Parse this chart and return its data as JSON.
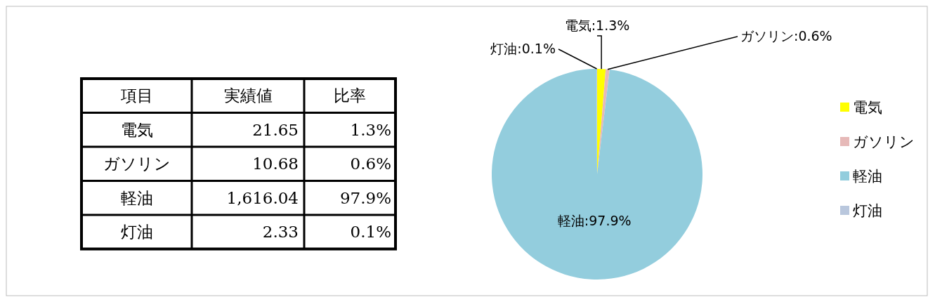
{
  "chart_data": {
    "type": "pie",
    "categories": [
      "電気",
      "ガソリン",
      "軽油",
      "灯油"
    ],
    "values": [
      1.3,
      0.6,
      97.9,
      0.1
    ],
    "value_labels": [
      "電気:1.3%",
      "ガソリン:0.6%",
      "軽油:97.9%",
      "灯油:0.1%"
    ],
    "colors": [
      "#ffff00",
      "#e6b9b8",
      "#93cddd",
      "#b9c7dd"
    ],
    "legend": "right",
    "annotations": [
      "項目",
      "実績値",
      "比率",
      "21.65",
      "10.68",
      "1,616.04",
      "2.33",
      "1.3%",
      "0.6%",
      "97.9%",
      "0.1%"
    ]
  }
}
